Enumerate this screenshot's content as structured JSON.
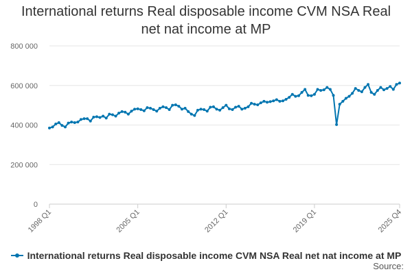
{
  "title": "International returns Real disposable income CVM NSA Real net nat income at MP",
  "source_label": "Source:",
  "colors": {
    "series": "#0075b0",
    "grid": "#e6e6e6",
    "axis_text": "#666666"
  },
  "chart_data": {
    "type": "line",
    "title": "International returns Real disposable income CVM NSA Real net nat income at MP",
    "xlabel": "",
    "ylabel": "",
    "ylim": [
      0,
      800000
    ],
    "y_ticks": [
      {
        "value": 0,
        "label": "0"
      },
      {
        "value": 200000,
        "label": "200 000"
      },
      {
        "value": 400000,
        "label": "400 000"
      },
      {
        "value": 600000,
        "label": "600 000"
      },
      {
        "value": 800000,
        "label": "800 000"
      }
    ],
    "x_tick_labels": [
      "1998 Q1",
      "2005 Q1",
      "2012 Q1",
      "2019 Q1",
      "2025 Q4"
    ],
    "grid": true,
    "legend_position": "bottom",
    "series": [
      {
        "name": "International returns Real disposable income CVM NSA Real net nat income at MP",
        "x": [
          "1998 Q1",
          "1998 Q2",
          "1998 Q3",
          "1998 Q4",
          "1999 Q1",
          "1999 Q2",
          "1999 Q3",
          "1999 Q4",
          "2000 Q1",
          "2000 Q2",
          "2000 Q3",
          "2000 Q4",
          "2001 Q1",
          "2001 Q2",
          "2001 Q3",
          "2001 Q4",
          "2002 Q1",
          "2002 Q2",
          "2002 Q3",
          "2002 Q4",
          "2003 Q1",
          "2003 Q2",
          "2003 Q3",
          "2003 Q4",
          "2004 Q1",
          "2004 Q2",
          "2004 Q3",
          "2004 Q4",
          "2005 Q1",
          "2005 Q2",
          "2005 Q3",
          "2005 Q4",
          "2006 Q1",
          "2006 Q2",
          "2006 Q3",
          "2006 Q4",
          "2007 Q1",
          "2007 Q2",
          "2007 Q3",
          "2007 Q4",
          "2008 Q1",
          "2008 Q2",
          "2008 Q3",
          "2008 Q4",
          "2009 Q1",
          "2009 Q2",
          "2009 Q3",
          "2009 Q4",
          "2010 Q1",
          "2010 Q2",
          "2010 Q3",
          "2010 Q4",
          "2011 Q1",
          "2011 Q2",
          "2011 Q3",
          "2011 Q4",
          "2012 Q1",
          "2012 Q2",
          "2012 Q3",
          "2012 Q4",
          "2013 Q1",
          "2013 Q2",
          "2013 Q3",
          "2013 Q4",
          "2014 Q1",
          "2014 Q2",
          "2014 Q3",
          "2014 Q4",
          "2015 Q1",
          "2015 Q2",
          "2015 Q3",
          "2015 Q4",
          "2016 Q1",
          "2016 Q2",
          "2016 Q3",
          "2016 Q4",
          "2017 Q1",
          "2017 Q2",
          "2017 Q3",
          "2017 Q4",
          "2018 Q1",
          "2018 Q2",
          "2018 Q3",
          "2018 Q4",
          "2019 Q1",
          "2019 Q2",
          "2019 Q3",
          "2019 Q4",
          "2020 Q1",
          "2020 Q2",
          "2020 Q3",
          "2020 Q4",
          "2021 Q1",
          "2021 Q2",
          "2021 Q3",
          "2021 Q4",
          "2022 Q1",
          "2022 Q2",
          "2022 Q3",
          "2022 Q4",
          "2023 Q1",
          "2023 Q2",
          "2023 Q3",
          "2023 Q4",
          "2024 Q1",
          "2024 Q2",
          "2024 Q3",
          "2024 Q4",
          "2025 Q1",
          "2025 Q2",
          "2025 Q3",
          "2025 Q4"
        ],
        "values": [
          385000,
          390000,
          405000,
          412000,
          398000,
          390000,
          410000,
          415000,
          412000,
          415000,
          428000,
          432000,
          432000,
          420000,
          440000,
          442000,
          438000,
          445000,
          435000,
          455000,
          452000,
          445000,
          460000,
          468000,
          465000,
          455000,
          470000,
          480000,
          482000,
          478000,
          472000,
          488000,
          485000,
          478000,
          470000,
          485000,
          492000,
          488000,
          478000,
          500000,
          502000,
          495000,
          480000,
          485000,
          468000,
          455000,
          448000,
          475000,
          480000,
          478000,
          470000,
          490000,
          492000,
          480000,
          475000,
          488000,
          500000,
          482000,
          478000,
          490000,
          495000,
          480000,
          485000,
          492000,
          510000,
          505000,
          502000,
          512000,
          520000,
          515000,
          518000,
          522000,
          528000,
          520000,
          522000,
          530000,
          540000,
          555000,
          545000,
          548000,
          565000,
          580000,
          550000,
          548000,
          555000,
          580000,
          575000,
          578000,
          590000,
          580000,
          550000,
          402000,
          505000,
          520000,
          535000,
          545000,
          560000,
          585000,
          575000,
          568000,
          590000,
          605000,
          565000,
          555000,
          575000,
          590000,
          578000,
          585000,
          595000,
          580000,
          605000,
          612000
        ]
      }
    ]
  }
}
